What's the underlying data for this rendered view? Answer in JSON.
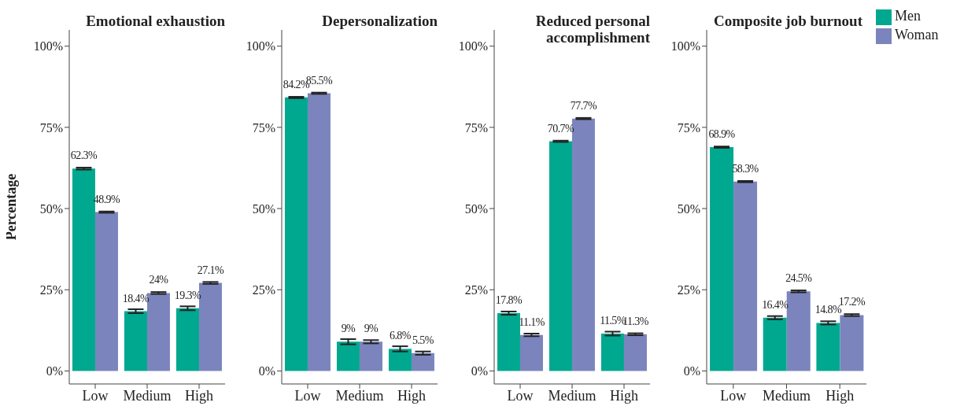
{
  "chart_data": [
    {
      "type": "bar",
      "title": "Emotional exhaustion",
      "ylabel": "Percentage",
      "categories": [
        "Low",
        "Medium",
        "High"
      ],
      "ylim": [
        -4,
        105
      ],
      "yticks": [
        {
          "value": 0,
          "label": "0%"
        },
        {
          "value": 25,
          "label": "25%"
        },
        {
          "value": 50,
          "label": "50%"
        },
        {
          "value": 75,
          "label": "75%"
        },
        {
          "value": 100,
          "label": "100%"
        }
      ],
      "grid": false,
      "series": [
        {
          "color": "#00a88f",
          "values": [
            62.3,
            18.4,
            19.3
          ],
          "errors": [
            0.3,
            0.6,
            0.6
          ],
          "value_labels": [
            "62.3%",
            "18.4%",
            "19.3%"
          ]
        },
        {
          "color": "#7b84bd",
          "values": [
            48.9,
            24,
            27.1
          ],
          "errors": [
            0.2,
            0.3,
            0.3
          ],
          "value_labels": [
            "48.9%",
            "24%",
            "27.1%"
          ]
        }
      ]
    },
    {
      "type": "bar",
      "title": "Depersonalization",
      "categories": [
        "Low",
        "Medium",
        "High"
      ],
      "ylim": [
        -4,
        105
      ],
      "yticks": [
        {
          "value": 0,
          "label": "0%"
        },
        {
          "value": 25,
          "label": "25%"
        },
        {
          "value": 50,
          "label": "50%"
        },
        {
          "value": 75,
          "label": "75%"
        },
        {
          "value": 100,
          "label": "100%"
        }
      ],
      "grid": false,
      "series": [
        {
          "color": "#00a88f",
          "values": [
            84.2,
            9,
            6.8
          ],
          "errors": [
            0.2,
            0.8,
            0.8
          ],
          "value_labels": [
            "84.2%",
            "9%",
            "6.8%"
          ]
        },
        {
          "color": "#7b84bd",
          "values": [
            85.5,
            9,
            5.5
          ],
          "errors": [
            0.2,
            0.5,
            0.5
          ],
          "value_labels": [
            "85.5%",
            "9%",
            "5.5%"
          ]
        }
      ]
    },
    {
      "type": "bar",
      "title": "Reduced personal accomplishment",
      "categories": [
        "Low",
        "Medium",
        "High"
      ],
      "ylim": [
        -4,
        105
      ],
      "yticks": [
        {
          "value": 0,
          "label": "0%"
        },
        {
          "value": 25,
          "label": "25%"
        },
        {
          "value": 50,
          "label": "50%"
        },
        {
          "value": 75,
          "label": "75%"
        },
        {
          "value": 100,
          "label": "100%"
        }
      ],
      "grid": false,
      "series": [
        {
          "color": "#00a88f",
          "values": [
            17.8,
            70.7,
            11.5
          ],
          "errors": [
            0.5,
            0.2,
            0.6
          ],
          "value_labels": [
            "17.8%",
            "70.7%",
            "11.5%"
          ]
        },
        {
          "color": "#7b84bd",
          "values": [
            11.1,
            77.7,
            11.3
          ],
          "errors": [
            0.4,
            0.2,
            0.3
          ],
          "value_labels": [
            "11.1%",
            "77.7%",
            "11.3%"
          ]
        }
      ]
    },
    {
      "type": "bar",
      "title": "Composite job burnout",
      "categories": [
        "Low",
        "Medium",
        "High"
      ],
      "ylim": [
        -4,
        105
      ],
      "yticks": [
        {
          "value": 0,
          "label": "0%"
        },
        {
          "value": 25,
          "label": "25%"
        },
        {
          "value": 50,
          "label": "50%"
        },
        {
          "value": 75,
          "label": "75%"
        },
        {
          "value": 100,
          "label": "100%"
        }
      ],
      "grid": false,
      "legend": "top right",
      "series": [
        {
          "name": "Men",
          "color": "#00a88f",
          "values": [
            68.9,
            16.4,
            14.8
          ],
          "errors": [
            0.2,
            0.5,
            0.5
          ],
          "value_labels": [
            "68.9%",
            "16.4%",
            "14.8%"
          ]
        },
        {
          "name": "Woman",
          "color": "#7b84bd",
          "values": [
            58.3,
            24.5,
            17.2
          ],
          "errors": [
            0.2,
            0.3,
            0.3
          ],
          "value_labels": [
            "58.3%",
            "24.5%",
            "17.2%"
          ]
        }
      ]
    }
  ]
}
